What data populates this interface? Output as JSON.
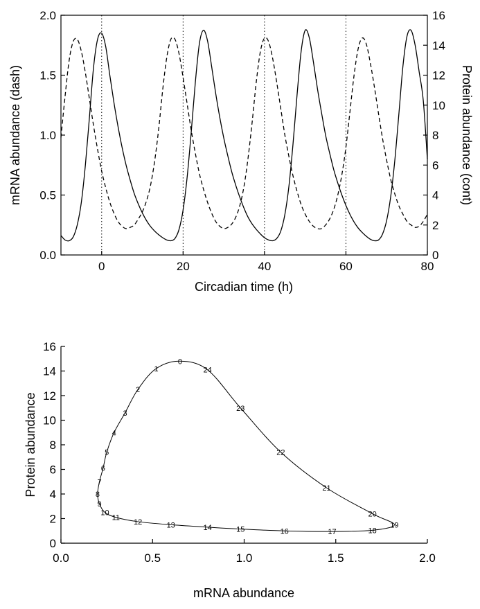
{
  "chart_data": [
    {
      "type": "line",
      "xlabel": "Circadian time (h)",
      "ylabel": "mRNA abundance (dash)",
      "y2label": "Protein abundance (cont)",
      "xlim": [
        -10,
        80
      ],
      "ylim": [
        0,
        2.0
      ],
      "y2lim": [
        0,
        16
      ],
      "x_ticks": [
        0,
        20,
        40,
        60,
        80
      ],
      "y_ticks": [
        "0.0",
        "0.5",
        "1.0",
        "1.5",
        "2.0"
      ],
      "y2_ticks": [
        0,
        2,
        4,
        6,
        8,
        10,
        12,
        14,
        16
      ],
      "vertical_reference_lines": [
        0,
        20,
        40,
        60
      ],
      "grid": false,
      "series": [
        {
          "axis": "left",
          "style": "dashed",
          "x": [
            -10,
            -9,
            -8,
            -7,
            -6,
            -5,
            -4,
            -3,
            -2,
            -1,
            0,
            1,
            2,
            3,
            4,
            5,
            6,
            7,
            8,
            9,
            10,
            11,
            12,
            13,
            14,
            15,
            16,
            17,
            18,
            19,
            20,
            21,
            22,
            23,
            24,
            25,
            26,
            27,
            28,
            29,
            30,
            31,
            32,
            33,
            34,
            35,
            36,
            37,
            38,
            39,
            40,
            41,
            42,
            43,
            44,
            45,
            46,
            47,
            48,
            49,
            50,
            51,
            52,
            53,
            54,
            55,
            56,
            57,
            58,
            59,
            60,
            61,
            62,
            63,
            64,
            65,
            66,
            67,
            68,
            69,
            70,
            71,
            72,
            73,
            74,
            75,
            76,
            77,
            78,
            79,
            80
          ],
          "values": [
            0.98,
            1.32,
            1.62,
            1.78,
            1.8,
            1.7,
            1.52,
            1.3,
            1.08,
            0.88,
            0.7,
            0.56,
            0.44,
            0.35,
            0.28,
            0.24,
            0.22,
            0.23,
            0.25,
            0.3,
            0.36,
            0.45,
            0.58,
            0.78,
            1.05,
            1.38,
            1.65,
            1.8,
            1.8,
            1.68,
            1.48,
            1.26,
            1.04,
            0.85,
            0.68,
            0.55,
            0.44,
            0.35,
            0.28,
            0.24,
            0.22,
            0.23,
            0.26,
            0.32,
            0.42,
            0.58,
            0.82,
            1.12,
            1.45,
            1.7,
            1.81,
            1.78,
            1.64,
            1.44,
            1.22,
            1.0,
            0.82,
            0.66,
            0.53,
            0.42,
            0.34,
            0.28,
            0.24,
            0.22,
            0.22,
            0.25,
            0.3,
            0.38,
            0.5,
            0.67,
            0.9,
            1.2,
            1.5,
            1.72,
            1.81,
            1.76,
            1.6,
            1.4,
            1.18,
            0.97,
            0.79,
            0.63,
            0.51,
            0.41,
            0.34,
            0.28,
            0.25,
            0.23,
            0.24,
            0.28,
            0.34
          ]
        },
        {
          "axis": "right",
          "style": "solid",
          "x": [
            -10,
            -9,
            -8,
            -7,
            -6,
            -5,
            -4,
            -3,
            -2,
            -1,
            0,
            1,
            2,
            3,
            4,
            5,
            6,
            7,
            8,
            9,
            10,
            11,
            12,
            13,
            14,
            15,
            16,
            17,
            18,
            19,
            20,
            21,
            22,
            23,
            24,
            25,
            26,
            27,
            28,
            29,
            30,
            31,
            32,
            33,
            34,
            35,
            36,
            37,
            38,
            39,
            40,
            41,
            42,
            43,
            44,
            45,
            46,
            47,
            48,
            49,
            50,
            51,
            52,
            53,
            54,
            55,
            56,
            57,
            58,
            59,
            60,
            61,
            62,
            63,
            64,
            65,
            66,
            67,
            68,
            69,
            70,
            71,
            72,
            73,
            74,
            75,
            76,
            77,
            78,
            79,
            80
          ],
          "values": [
            1.3,
            1.0,
            0.95,
            1.2,
            2.0,
            3.5,
            6.0,
            9.2,
            12.5,
            14.4,
            14.8,
            13.9,
            12.0,
            10.2,
            8.6,
            7.2,
            6.0,
            5.0,
            4.1,
            3.4,
            2.8,
            2.3,
            1.9,
            1.6,
            1.35,
            1.15,
            1.0,
            0.95,
            1.1,
            1.7,
            3.0,
            5.2,
            8.2,
            11.5,
            14.1,
            15.0,
            14.3,
            12.6,
            10.8,
            9.2,
            7.8,
            6.6,
            5.5,
            4.6,
            3.8,
            3.1,
            2.5,
            2.05,
            1.7,
            1.4,
            1.15,
            1.0,
            0.95,
            1.1,
            1.6,
            2.7,
            4.6,
            7.4,
            10.7,
            13.6,
            15.0,
            14.5,
            12.9,
            11.1,
            9.5,
            8.0,
            6.8,
            5.7,
            4.8,
            4.0,
            3.3,
            2.7,
            2.2,
            1.8,
            1.5,
            1.25,
            1.05,
            0.95,
            1.0,
            1.4,
            2.3,
            3.9,
            6.3,
            9.4,
            12.6,
            14.6,
            15.0,
            14.0,
            12.2,
            10.3,
            6.4
          ]
        }
      ]
    },
    {
      "type": "line",
      "xlabel": "mRNA abundance",
      "ylabel": "Protein abundance",
      "xlim": [
        0,
        2.0
      ],
      "ylim": [
        0,
        16
      ],
      "x_ticks": [
        "0.0",
        "0.5",
        "1.0",
        "1.5",
        "2.0"
      ],
      "y_ticks": [
        0,
        2,
        4,
        6,
        8,
        10,
        12,
        14,
        16
      ],
      "grid": false,
      "points": [
        {
          "label": "0",
          "x": 0.65,
          "y": 14.8
        },
        {
          "label": "1",
          "x": 0.52,
          "y": 14.2
        },
        {
          "label": "2",
          "x": 0.42,
          "y": 12.5
        },
        {
          "label": "3",
          "x": 0.35,
          "y": 10.6
        },
        {
          "label": "4",
          "x": 0.29,
          "y": 9.0
        },
        {
          "label": "5",
          "x": 0.25,
          "y": 7.4
        },
        {
          "label": "6",
          "x": 0.23,
          "y": 6.1
        },
        {
          "label": "7",
          "x": 0.21,
          "y": 5.0
        },
        {
          "label": "8",
          "x": 0.2,
          "y": 4.0
        },
        {
          "label": "9",
          "x": 0.21,
          "y": 3.2
        },
        {
          "label": "10",
          "x": 0.24,
          "y": 2.5
        },
        {
          "label": "11",
          "x": 0.3,
          "y": 2.1
        },
        {
          "label": "12",
          "x": 0.42,
          "y": 1.75
        },
        {
          "label": "13",
          "x": 0.6,
          "y": 1.5
        },
        {
          "label": "14",
          "x": 0.8,
          "y": 1.3
        },
        {
          "label": "15",
          "x": 0.98,
          "y": 1.15
        },
        {
          "label": "16",
          "x": 1.22,
          "y": 1.0
        },
        {
          "label": "17",
          "x": 1.48,
          "y": 0.95
        },
        {
          "label": "18",
          "x": 1.7,
          "y": 1.05
        },
        {
          "label": "19",
          "x": 1.82,
          "y": 1.5
        },
        {
          "label": "20",
          "x": 1.7,
          "y": 2.4
        },
        {
          "label": "21",
          "x": 1.45,
          "y": 4.5
        },
        {
          "label": "22",
          "x": 1.2,
          "y": 7.4
        },
        {
          "label": "23",
          "x": 0.98,
          "y": 11.0
        },
        {
          "label": "24",
          "x": 0.8,
          "y": 14.1
        }
      ]
    }
  ]
}
